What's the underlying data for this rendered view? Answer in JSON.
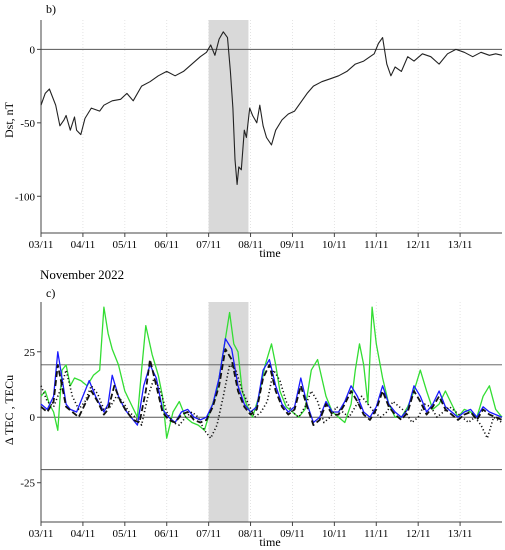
{
  "colors": {
    "axis": "#444444",
    "gridline": "#dddddd",
    "refline": "#555555",
    "storm_band": "#d9d9d9",
    "dst": "#222222",
    "green": "#33dd33",
    "blue": "#1a1aff",
    "black_dashed": "#111111",
    "dotted": "#111111"
  },
  "chart_data": [
    {
      "type": "line",
      "panel_label": "b)",
      "ylabel": "Dst, nT",
      "xlabel": "time",
      "x_ticks": [
        "03/11",
        "04/11",
        "05/11",
        "06/11",
        "07/11",
        "08/11",
        "09/11",
        "10/11",
        "11/11",
        "12/11",
        "13/11"
      ],
      "xlim": [
        3,
        14
      ],
      "ylim": [
        -125,
        20
      ],
      "y_ticks": [
        0,
        -50,
        -100
      ],
      "reference_lines": [
        0
      ],
      "shaded_interval": [
        7.0,
        7.95
      ],
      "series": [
        {
          "style": "solid",
          "color": "#222222",
          "x": [
            3.0,
            3.1,
            3.2,
            3.35,
            3.45,
            3.55,
            3.6,
            3.7,
            3.8,
            3.85,
            3.95,
            4.05,
            4.2,
            4.4,
            4.5,
            4.7,
            4.9,
            5.05,
            5.2,
            5.4,
            5.6,
            5.8,
            6.0,
            6.2,
            6.4,
            6.6,
            6.8,
            6.95,
            7.05,
            7.15,
            7.25,
            7.35,
            7.45,
            7.52,
            7.58,
            7.63,
            7.68,
            7.72,
            7.78,
            7.85,
            7.9,
            7.98,
            8.05,
            8.15,
            8.22,
            8.3,
            8.38,
            8.5,
            8.6,
            8.75,
            8.9,
            9.05,
            9.2,
            9.35,
            9.5,
            9.7,
            9.9,
            10.1,
            10.3,
            10.5,
            10.7,
            10.85,
            10.95,
            11.05,
            11.15,
            11.25,
            11.35,
            11.45,
            11.6,
            11.75,
            11.9,
            12.1,
            12.3,
            12.5,
            12.7,
            12.9,
            13.1,
            13.3,
            13.5,
            13.7,
            13.85,
            14.0
          ],
          "y": [
            -38,
            -30,
            -27,
            -38,
            -52,
            -48,
            -45,
            -55,
            -46,
            -55,
            -58,
            -47,
            -40,
            -42,
            -38,
            -35,
            -34,
            -30,
            -35,
            -25,
            -22,
            -18,
            -15,
            -18,
            -15,
            -10,
            -5,
            -2,
            3,
            -4,
            7,
            12,
            8,
            -15,
            -40,
            -75,
            -92,
            -80,
            -82,
            -55,
            -60,
            -40,
            -45,
            -50,
            -38,
            -52,
            -60,
            -65,
            -55,
            -48,
            -44,
            -42,
            -36,
            -30,
            -25,
            -22,
            -20,
            -18,
            -15,
            -10,
            -8,
            -5,
            -3,
            4,
            8,
            -10,
            -18,
            -12,
            -15,
            -5,
            -8,
            -3,
            -5,
            -10,
            -3,
            0,
            -2,
            -5,
            -2,
            -4,
            -3,
            -4
          ]
        }
      ]
    },
    {
      "type": "line",
      "title": "November 2022",
      "panel_label": "c)",
      "ylabel": "Δ TEC , TECu",
      "xlabel": "time",
      "x_ticks": [
        "03/11",
        "04/11",
        "05/11",
        "06/11",
        "07/11",
        "08/11",
        "09/11",
        "10/11",
        "11/11",
        "12/11",
        "13/11"
      ],
      "xlim": [
        3,
        14
      ],
      "ylim": [
        -40,
        44
      ],
      "y_ticks": [
        25,
        0,
        -25
      ],
      "reference_lines": [
        20,
        0,
        -20
      ],
      "shaded_interval": [
        7.0,
        7.95
      ],
      "series": [
        {
          "style": "solid",
          "color": "#33dd33",
          "x": [
            3.0,
            3.1,
            3.2,
            3.3,
            3.4,
            3.5,
            3.6,
            3.7,
            3.8,
            3.95,
            4.1,
            4.25,
            4.4,
            4.5,
            4.6,
            4.7,
            4.85,
            5.0,
            5.15,
            5.3,
            5.4,
            5.5,
            5.65,
            5.8,
            5.9,
            6.0,
            6.15,
            6.3,
            6.45,
            6.6,
            6.75,
            6.9,
            7.05,
            7.2,
            7.35,
            7.5,
            7.6,
            7.7,
            7.8,
            7.9,
            8.05,
            8.2,
            8.35,
            8.5,
            8.6,
            8.7,
            8.85,
            9.0,
            9.15,
            9.3,
            9.45,
            9.6,
            9.7,
            9.8,
            9.95,
            10.1,
            10.25,
            10.4,
            10.5,
            10.6,
            10.7,
            10.8,
            10.9,
            11.0,
            11.15,
            11.3,
            11.45,
            11.6,
            11.75,
            11.9,
            12.05,
            12.2,
            12.35,
            12.5,
            12.65,
            12.8,
            12.95,
            13.1,
            13.25,
            13.4,
            13.55,
            13.7,
            13.85,
            14.0
          ],
          "y": [
            8,
            10,
            5,
            2,
            -5,
            18,
            20,
            12,
            15,
            14,
            12,
            16,
            18,
            42,
            32,
            26,
            20,
            10,
            5,
            0,
            18,
            35,
            24,
            16,
            8,
            -8,
            2,
            6,
            0,
            -2,
            -3,
            -5,
            3,
            10,
            25,
            40,
            28,
            25,
            10,
            5,
            0,
            8,
            20,
            28,
            20,
            10,
            4,
            2,
            0,
            3,
            18,
            22,
            15,
            8,
            2,
            0,
            -2,
            5,
            18,
            28,
            20,
            5,
            42,
            28,
            15,
            5,
            0,
            0,
            4,
            10,
            18,
            10,
            3,
            5,
            10,
            5,
            0,
            3,
            2,
            0,
            8,
            12,
            3,
            0
          ]
        },
        {
          "style": "solid",
          "color": "#1a1aff",
          "x": [
            3.0,
            3.15,
            3.3,
            3.4,
            3.5,
            3.6,
            3.7,
            3.85,
            4.0,
            4.15,
            4.3,
            4.5,
            4.6,
            4.7,
            4.85,
            5.0,
            5.15,
            5.3,
            5.45,
            5.6,
            5.75,
            5.9,
            6.05,
            6.2,
            6.35,
            6.5,
            6.65,
            6.8,
            6.95,
            7.1,
            7.25,
            7.4,
            7.55,
            7.7,
            7.85,
            8.0,
            8.15,
            8.3,
            8.45,
            8.6,
            8.75,
            8.9,
            9.05,
            9.2,
            9.35,
            9.5,
            9.65,
            9.8,
            9.95,
            10.1,
            10.25,
            10.4,
            10.55,
            10.7,
            10.85,
            11.0,
            11.15,
            11.3,
            11.45,
            11.6,
            11.75,
            11.9,
            12.05,
            12.2,
            12.35,
            12.5,
            12.65,
            12.8,
            12.95,
            13.1,
            13.25,
            13.4,
            13.55,
            13.7,
            13.85,
            14.0
          ],
          "y": [
            5,
            3,
            8,
            25,
            15,
            5,
            3,
            2,
            8,
            14,
            8,
            2,
            5,
            16,
            8,
            3,
            0,
            -3,
            12,
            20,
            15,
            3,
            0,
            -2,
            2,
            3,
            0,
            -1,
            0,
            5,
            15,
            30,
            26,
            12,
            5,
            2,
            4,
            18,
            22,
            12,
            5,
            2,
            4,
            15,
            5,
            -2,
            0,
            6,
            2,
            2,
            6,
            12,
            8,
            2,
            0,
            4,
            12,
            5,
            2,
            0,
            3,
            12,
            8,
            2,
            5,
            10,
            4,
            2,
            0,
            2,
            3,
            0,
            4,
            2,
            1,
            0
          ]
        },
        {
          "style": "dashed",
          "color": "#111111",
          "x": [
            3.0,
            3.15,
            3.3,
            3.4,
            3.5,
            3.6,
            3.75,
            3.9,
            4.05,
            4.2,
            4.35,
            4.5,
            4.6,
            4.75,
            4.9,
            5.05,
            5.2,
            5.35,
            5.5,
            5.6,
            5.75,
            5.9,
            6.05,
            6.2,
            6.35,
            6.5,
            6.65,
            6.8,
            6.95,
            7.1,
            7.25,
            7.4,
            7.55,
            7.7,
            7.85,
            8.0,
            8.15,
            8.3,
            8.45,
            8.6,
            8.75,
            8.9,
            9.05,
            9.2,
            9.35,
            9.5,
            9.65,
            9.8,
            9.95,
            10.1,
            10.25,
            10.4,
            10.55,
            10.7,
            10.85,
            11.0,
            11.15,
            11.3,
            11.45,
            11.6,
            11.75,
            11.9,
            12.05,
            12.2,
            12.35,
            12.5,
            12.65,
            12.8,
            12.95,
            13.1,
            13.25,
            13.4,
            13.55,
            13.7,
            13.85,
            14.0
          ],
          "y": [
            4,
            2,
            6,
            20,
            12,
            4,
            2,
            0,
            5,
            10,
            6,
            1,
            3,
            12,
            6,
            2,
            -1,
            -2,
            10,
            22,
            12,
            2,
            -1,
            -2,
            1,
            2,
            -1,
            -2,
            -1,
            4,
            12,
            26,
            22,
            10,
            4,
            1,
            3,
            15,
            20,
            10,
            4,
            1,
            3,
            12,
            4,
            -3,
            -1,
            5,
            1,
            1,
            5,
            10,
            6,
            1,
            -1,
            3,
            10,
            4,
            1,
            -1,
            2,
            10,
            6,
            1,
            4,
            8,
            3,
            1,
            -1,
            1,
            2,
            -1,
            3,
            1,
            0,
            -1
          ]
        },
        {
          "style": "dotted",
          "color": "#111111",
          "x": [
            3.0,
            3.15,
            3.3,
            3.45,
            3.6,
            3.75,
            3.9,
            4.05,
            4.2,
            4.35,
            4.5,
            4.65,
            4.8,
            4.95,
            5.1,
            5.25,
            5.4,
            5.55,
            5.7,
            5.85,
            6.0,
            6.15,
            6.3,
            6.45,
            6.6,
            6.75,
            6.9,
            7.05,
            7.2,
            7.35,
            7.5,
            7.65,
            7.8,
            7.95,
            8.1,
            8.25,
            8.4,
            8.55,
            8.7,
            8.85,
            9.0,
            9.15,
            9.3,
            9.45,
            9.6,
            9.75,
            9.9,
            10.05,
            10.2,
            10.35,
            10.5,
            10.65,
            10.8,
            10.95,
            11.1,
            11.25,
            11.4,
            11.55,
            11.7,
            11.85,
            12.0,
            12.15,
            12.3,
            12.45,
            12.6,
            12.75,
            12.9,
            13.05,
            13.2,
            13.35,
            13.5,
            13.65,
            13.8,
            14.0
          ],
          "y": [
            12,
            6,
            4,
            10,
            18,
            8,
            3,
            6,
            12,
            9,
            3,
            4,
            8,
            6,
            2,
            0,
            -3,
            8,
            15,
            10,
            2,
            -2,
            -3,
            0,
            2,
            0,
            -5,
            -8,
            -3,
            8,
            20,
            18,
            10,
            5,
            0,
            2,
            6,
            18,
            14,
            6,
            2,
            0,
            4,
            10,
            6,
            -2,
            0,
            4,
            2,
            0,
            4,
            8,
            5,
            2,
            0,
            2,
            6,
            4,
            2,
            -2,
            0,
            5,
            4,
            0,
            2,
            4,
            2,
            0,
            -2,
            0,
            -3,
            -8,
            0,
            -2
          ]
        }
      ]
    }
  ]
}
